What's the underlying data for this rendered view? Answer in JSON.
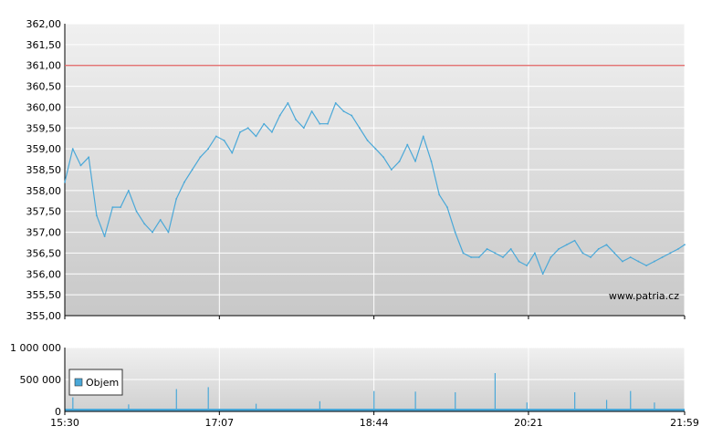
{
  "chart_data": [
    {
      "type": "line",
      "title": "",
      "xlabel": "",
      "ylabel": "",
      "ylim": [
        355.0,
        362.0
      ],
      "y_ticks": [
        "362,00",
        "361,50",
        "361,00",
        "360,50",
        "360,00",
        "359,50",
        "359,00",
        "358,50",
        "358,00",
        "357,50",
        "357,00",
        "356,50",
        "356,00",
        "355,50",
        "355,00"
      ],
      "x_ticks": [
        "15:30",
        "17:07",
        "18:44",
        "20:21",
        "21:59"
      ],
      "reference_line": {
        "value": 361.0,
        "color": "#e06060"
      },
      "series": [
        {
          "color": "#4aa8d8",
          "x": [
            "15:30",
            "15:35",
            "15:40",
            "15:45",
            "15:50",
            "15:55",
            "16:00",
            "16:05",
            "16:10",
            "16:15",
            "16:20",
            "16:25",
            "16:30",
            "16:35",
            "16:40",
            "16:45",
            "16:50",
            "16:55",
            "17:00",
            "17:05",
            "17:10",
            "17:15",
            "17:20",
            "17:25",
            "17:30",
            "17:35",
            "17:40",
            "17:45",
            "17:50",
            "17:55",
            "18:00",
            "18:05",
            "18:10",
            "18:15",
            "18:20",
            "18:25",
            "18:30",
            "18:35",
            "18:40",
            "18:45",
            "18:50",
            "18:55",
            "19:00",
            "19:05",
            "19:10",
            "19:15",
            "19:20",
            "19:25",
            "19:30",
            "19:35",
            "19:40",
            "19:45",
            "19:50",
            "19:55",
            "20:00",
            "20:05",
            "20:10",
            "20:15",
            "20:20",
            "20:25",
            "20:30",
            "20:35",
            "20:40",
            "20:45",
            "20:50",
            "20:55",
            "21:00",
            "21:05",
            "21:10",
            "21:15",
            "21:20",
            "21:25",
            "21:30",
            "21:35",
            "21:40",
            "21:45",
            "21:50",
            "21:55",
            "21:59"
          ],
          "values": [
            358.2,
            359.0,
            358.6,
            358.8,
            357.4,
            356.9,
            357.6,
            357.6,
            358.0,
            357.5,
            357.2,
            357.0,
            357.3,
            357.0,
            357.8,
            358.2,
            358.5,
            358.8,
            359.0,
            359.3,
            359.2,
            358.9,
            359.4,
            359.5,
            359.3,
            359.6,
            359.4,
            359.8,
            360.1,
            359.7,
            359.5,
            359.9,
            359.6,
            359.6,
            360.1,
            359.9,
            359.8,
            359.5,
            359.2,
            359.0,
            358.8,
            358.5,
            358.7,
            359.1,
            358.7,
            359.3,
            358.7,
            357.9,
            357.6,
            357.0,
            356.5,
            356.4,
            356.4,
            356.6,
            356.5,
            356.4,
            356.6,
            356.3,
            356.2,
            356.5,
            356.0,
            356.4,
            356.6,
            356.7,
            356.8,
            356.5,
            356.4,
            356.6,
            356.7,
            356.5,
            356.3,
            356.4,
            356.3,
            356.2,
            356.3,
            356.4,
            356.5,
            356.6,
            356.7
          ]
        }
      ],
      "watermark": "www.patria.cz"
    },
    {
      "type": "bar",
      "title": "",
      "xlabel": "",
      "ylabel": "",
      "ylim": [
        0,
        1000000
      ],
      "y_ticks": [
        "1 000 000",
        "500 000",
        "0"
      ],
      "x_ticks": [
        "15:30",
        "17:07",
        "18:44",
        "20:21",
        "21:59"
      ],
      "legend": {
        "placement": "top-left",
        "entries": [
          "Objem"
        ]
      },
      "series": [
        {
          "name": "Objem",
          "color": "#4aa8d8",
          "x": [
            "15:35",
            "16:10",
            "16:40",
            "17:00",
            "17:30",
            "18:10",
            "18:44",
            "19:10",
            "19:35",
            "20:00",
            "20:20",
            "20:50",
            "21:10",
            "21:25",
            "21:40"
          ],
          "values": [
            220000,
            110000,
            350000,
            380000,
            120000,
            160000,
            320000,
            310000,
            300000,
            600000,
            140000,
            300000,
            180000,
            320000,
            140000
          ]
        }
      ]
    }
  ]
}
